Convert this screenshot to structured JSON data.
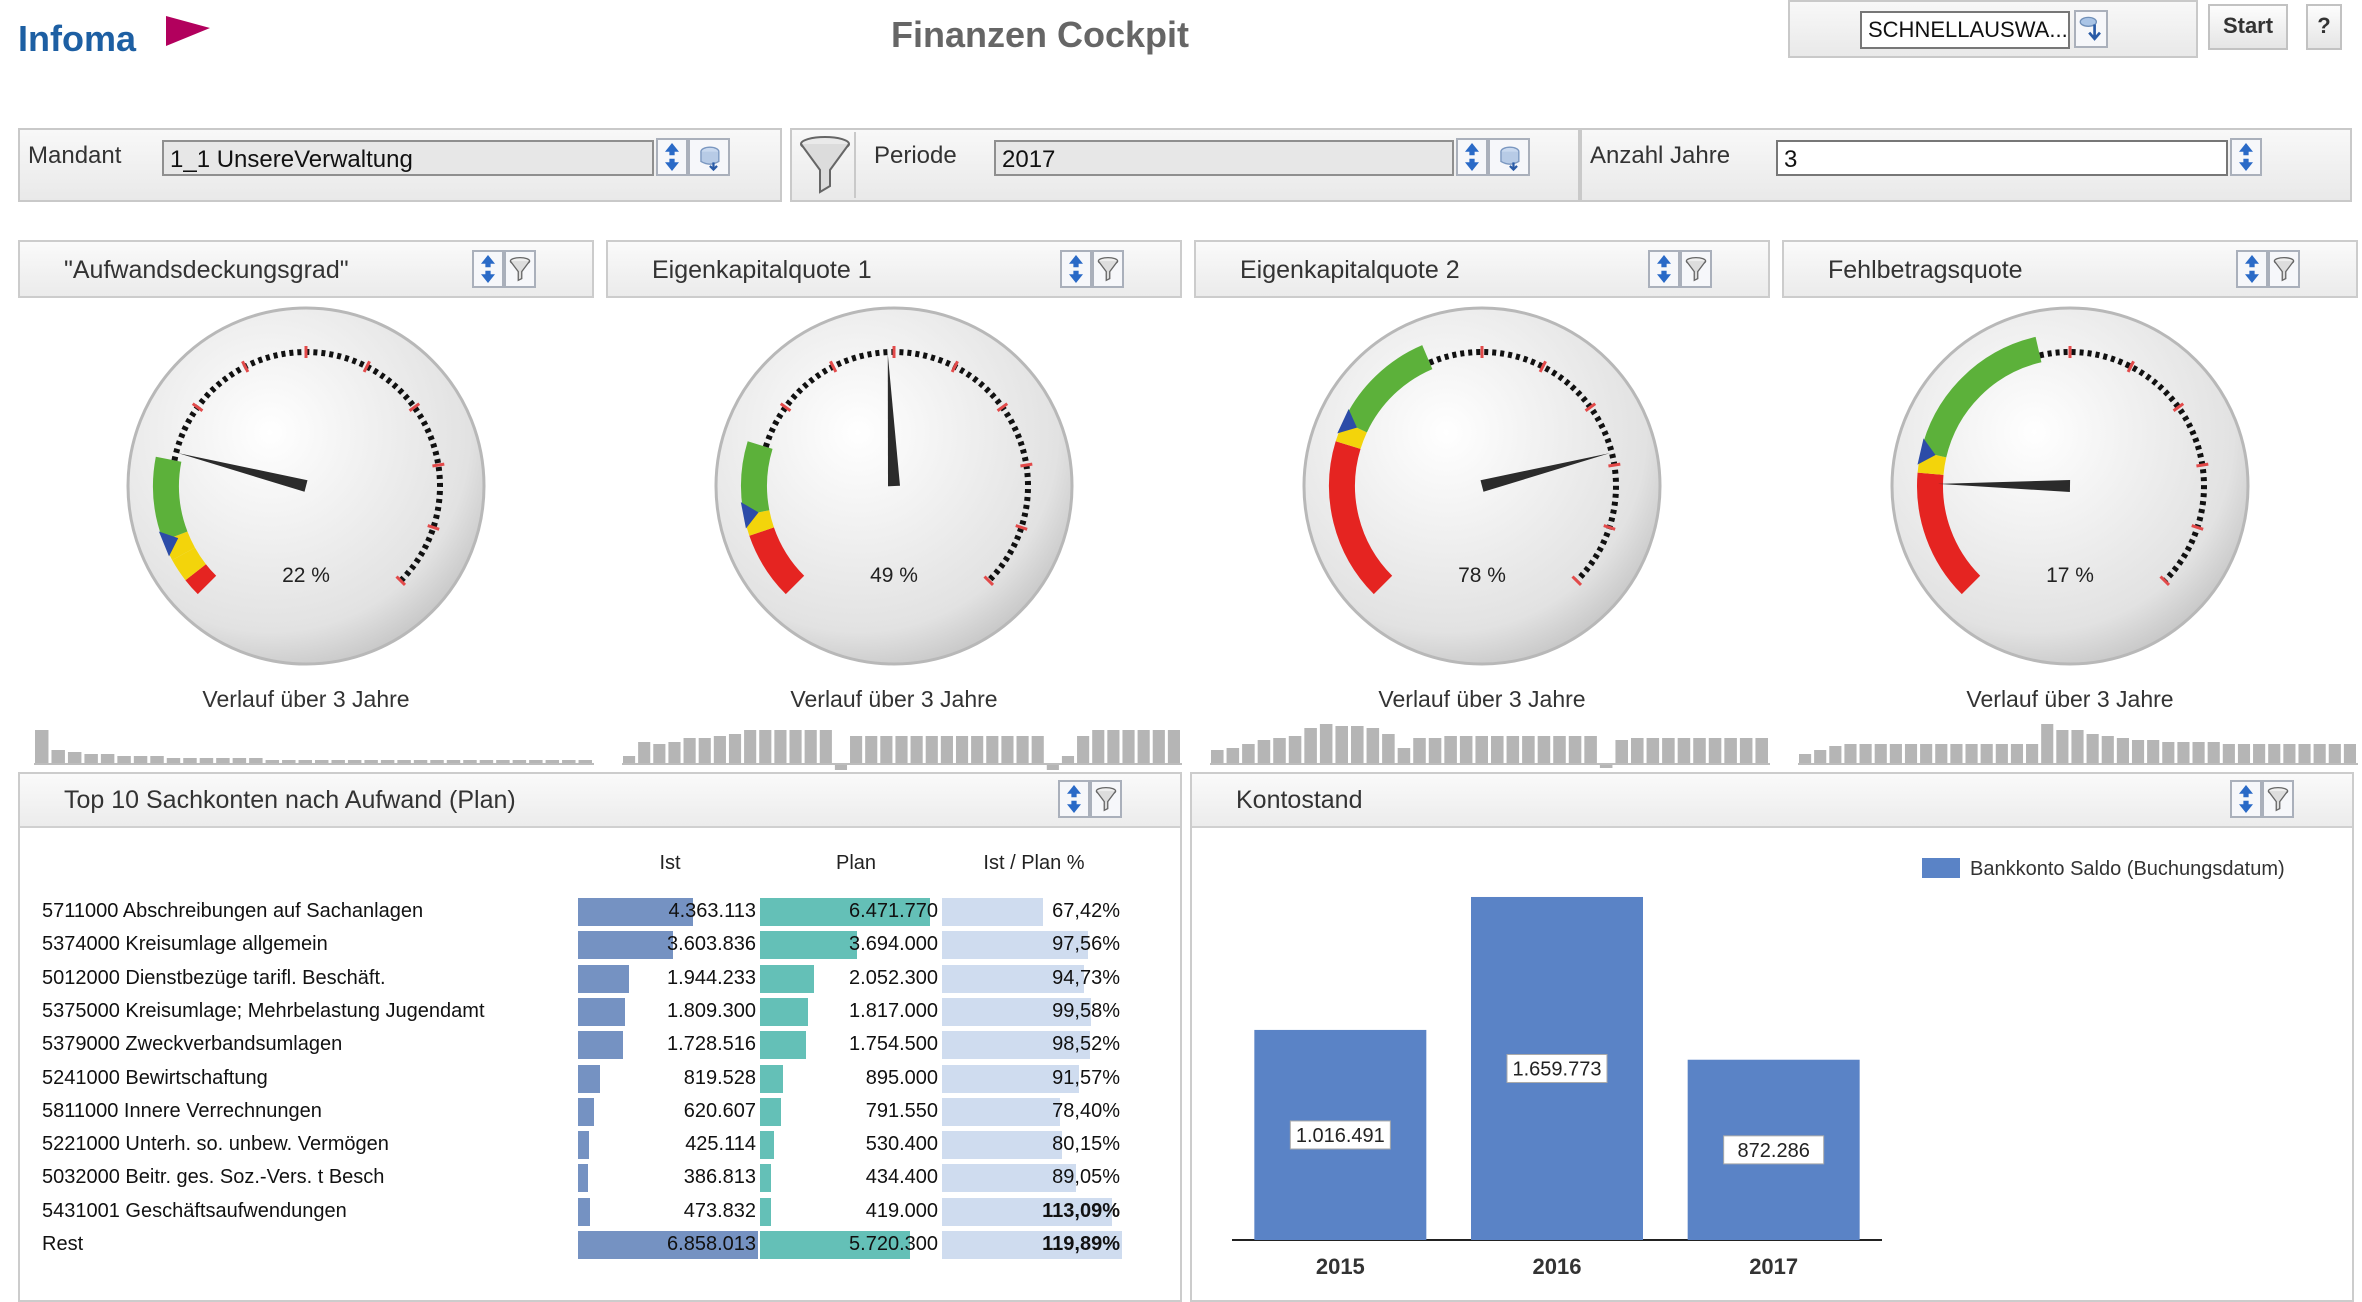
{
  "header": {
    "brand": "Infoma",
    "title": "Finanzen Cockpit",
    "quick_select": "SCHNELLAUSWA...",
    "start_label": "Start",
    "help_label": "?"
  },
  "filters": {
    "mandant_label": "Mandant",
    "mandant_value": "1_1 UnsereVerwaltung",
    "periode_label": "Periode",
    "periode_value": "2017",
    "jahre_label": "Anzahl Jahre",
    "jahre_value": "3"
  },
  "gauges": [
    {
      "title": "\"Aufwandsdeckungsgrad\"",
      "value": "22 %",
      "percent": 22,
      "history_label": "Verlauf über 3 Jahre"
    },
    {
      "title": "Eigenkapitalquote 1",
      "value": "49 %",
      "percent": 49,
      "history_label": "Verlauf über 3 Jahre"
    },
    {
      "title": "Eigenkapitalquote 2",
      "value": "78 %",
      "percent": 78,
      "history_label": "Verlauf über 3 Jahre"
    },
    {
      "title": "Fehlbetragsquote",
      "value": "17 %",
      "percent": 17,
      "history_label": "Verlauf über 3 Jahre"
    }
  ],
  "top10": {
    "title": "Top 10 Sachkonten nach Aufwand (Plan)",
    "headers": {
      "ist": "Ist",
      "plan": "Plan",
      "ratio": "Ist / Plan %"
    },
    "rows": [
      {
        "label": "5711000 Abschreibungen auf Sachanlagen",
        "ist": "4.363.113",
        "plan": "6.471.770",
        "ratio": "67,42%",
        "ist_n": 4363113,
        "plan_n": 6471770,
        "ratio_n": 67.42,
        "bold": false
      },
      {
        "label": "5374000 Kreisumlage allgemein",
        "ist": "3.603.836",
        "plan": "3.694.000",
        "ratio": "97,56%",
        "ist_n": 3603836,
        "plan_n": 3694000,
        "ratio_n": 97.56,
        "bold": false
      },
      {
        "label": "5012000 Dienstbezüge tarifl. Beschäft.",
        "ist": "1.944.233",
        "plan": "2.052.300",
        "ratio": "94,73%",
        "ist_n": 1944233,
        "plan_n": 2052300,
        "ratio_n": 94.73,
        "bold": false
      },
      {
        "label": "5375000 Kreisumlage; Mehrbelastung Jugendamt",
        "ist": "1.809.300",
        "plan": "1.817.000",
        "ratio": "99,58%",
        "ist_n": 1809300,
        "plan_n": 1817000,
        "ratio_n": 99.58,
        "bold": false
      },
      {
        "label": "5379000 Zweckverbandsumlagen",
        "ist": "1.728.516",
        "plan": "1.754.500",
        "ratio": "98,52%",
        "ist_n": 1728516,
        "plan_n": 1754500,
        "ratio_n": 98.52,
        "bold": false
      },
      {
        "label": "5241000 Bewirtschaftung",
        "ist": "819.528",
        "plan": "895.000",
        "ratio": "91,57%",
        "ist_n": 819528,
        "plan_n": 895000,
        "ratio_n": 91.57,
        "bold": false
      },
      {
        "label": "5811000 Innere Verrechnungen",
        "ist": "620.607",
        "plan": "791.550",
        "ratio": "78,40%",
        "ist_n": 620607,
        "plan_n": 791550,
        "ratio_n": 78.4,
        "bold": false
      },
      {
        "label": "5221000 Unterh. so. unbew. Vermögen",
        "ist": "425.114",
        "plan": "530.400",
        "ratio": "80,15%",
        "ist_n": 425114,
        "plan_n": 530400,
        "ratio_n": 80.15,
        "bold": false
      },
      {
        "label": "5032000 Beitr. ges. Soz.-Vers. t Besch",
        "ist": "386.813",
        "plan": "434.400",
        "ratio": "89,05%",
        "ist_n": 386813,
        "plan_n": 434400,
        "ratio_n": 89.05,
        "bold": false
      },
      {
        "label": "5431001 Geschäftsaufwendungen",
        "ist": "473.832",
        "plan": "419.000",
        "ratio": "113,09%",
        "ist_n": 473832,
        "plan_n": 419000,
        "ratio_n": 113.09,
        "bold": true
      },
      {
        "label": "Rest",
        "ist": "6.858.013",
        "plan": "5.720.300",
        "ratio": "119,89%",
        "ist_n": 6858013,
        "plan_n": 5720300,
        "ratio_n": 119.89,
        "bold": true
      }
    ]
  },
  "kontostand": {
    "title": "Kontostand",
    "chart_data": {
      "type": "bar",
      "categories": [
        "2015",
        "2016",
        "2017"
      ],
      "series": [
        {
          "name": "Bankkonto Saldo (Buchungsdatum)",
          "values": [
            1016491,
            1659773,
            872286
          ]
        }
      ],
      "data_labels": [
        "1.016.491",
        "1.659.773",
        "872.286"
      ],
      "ylim": [
        0,
        1800000
      ],
      "legend": "top-right",
      "color": "#5a83c6"
    }
  },
  "colors": {
    "gauge_green": "#5cb13a",
    "gauge_yellow": "#f3d40b",
    "gauge_red": "#e52421",
    "ist_bar": "#7592c2",
    "plan_bar": "#64c0b7",
    "ratio_bar": "#cfdcef",
    "brand_blue": "#1d5fa3",
    "brand_accent": "#b2005d"
  }
}
